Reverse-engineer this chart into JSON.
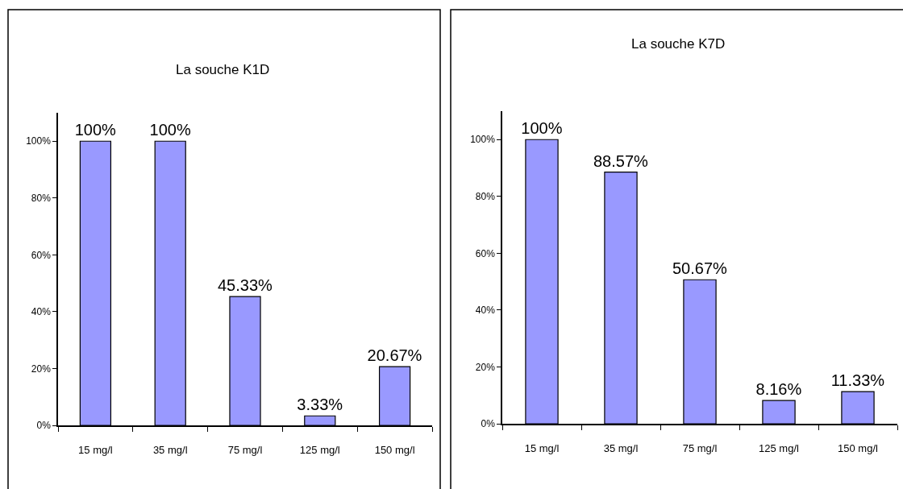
{
  "chart_data": [
    {
      "type": "bar",
      "title": "La souche K1D",
      "categories": [
        "15 mg/l",
        "35 mg/l",
        "75 mg/l",
        "125 mg/l",
        "150 mg/l"
      ],
      "values": [
        100,
        100,
        45.33,
        3.33,
        20.67
      ],
      "value_labels": [
        "100%",
        "100%",
        "45.33%",
        "3.33%",
        "20.67%"
      ],
      "color": "#9999ff",
      "ylim": [
        0,
        110
      ],
      "yticks": [
        {
          "value": 0,
          "label": "0%"
        },
        {
          "value": 20,
          "label": "20%"
        },
        {
          "value": 40,
          "label": "40%"
        },
        {
          "value": 60,
          "label": "60%"
        },
        {
          "value": 80,
          "label": "80%"
        },
        {
          "value": 100,
          "label": "100%"
        }
      ]
    },
    {
      "type": "bar",
      "title": "La souche K7D",
      "categories": [
        "15 mg/l",
        "35 mg/l",
        "75 mg/l",
        "125 mg/l",
        "150 mg/l"
      ],
      "values": [
        100,
        88.57,
        50.67,
        8.16,
        11.33
      ],
      "value_labels": [
        "100%",
        "88.57%",
        "50.67%",
        "8.16%",
        "11.33%"
      ],
      "color": "#9999ff",
      "ylim": [
        0,
        110
      ],
      "yticks": [
        {
          "value": 0,
          "label": "0%"
        },
        {
          "value": 20,
          "label": "20%"
        },
        {
          "value": 40,
          "label": "40%"
        },
        {
          "value": 60,
          "label": "60%"
        },
        {
          "value": 80,
          "label": "80%"
        },
        {
          "value": 100,
          "label": "100%"
        }
      ]
    }
  ]
}
